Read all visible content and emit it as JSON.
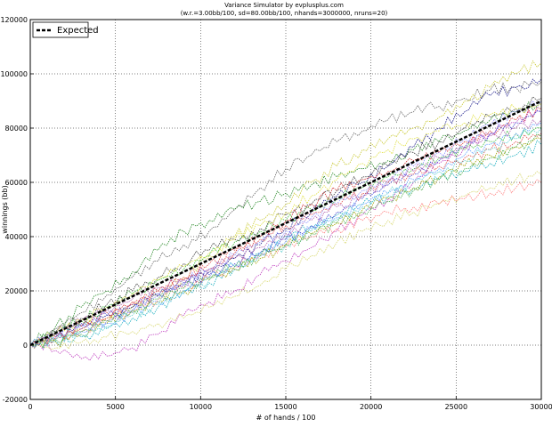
{
  "chart_data": {
    "type": "line",
    "title": "Variance Simulator by evplusplus.com",
    "subtitle": "(w.r.=3.00bb/100, sd=80.00bb/100, nhands=3000000, nruns=20)",
    "xlabel": "# of hands / 100",
    "ylabel": "winnings (bb)",
    "xlim": [
      0,
      30000
    ],
    "ylim": [
      -20000,
      120000
    ],
    "x_ticks": [
      0,
      5000,
      10000,
      15000,
      20000,
      25000,
      30000
    ],
    "y_ticks": [
      -20000,
      0,
      20000,
      40000,
      60000,
      80000,
      100000,
      120000
    ],
    "grid": true,
    "legend": {
      "position": "top-left",
      "entries": [
        "Expected"
      ]
    },
    "x": [
      0,
      1500,
      3000,
      4500,
      6000,
      7500,
      9000,
      10500,
      12000,
      13500,
      15000,
      16500,
      18000,
      19500,
      21000,
      22500,
      24000,
      25500,
      27000,
      28500,
      30000
    ],
    "series": [
      {
        "name": "Expected",
        "color": "#000000",
        "style": "dashed",
        "width": 2.5,
        "values": [
          0,
          4500,
          9000,
          13500,
          18000,
          22500,
          27000,
          31500,
          36000,
          40500,
          45000,
          49500,
          54000,
          58500,
          63000,
          67500,
          72000,
          76500,
          81000,
          85500,
          90000
        ]
      },
      {
        "color": "#6a6a6a",
        "values": [
          0,
          6000,
          12000,
          18500,
          25000,
          31000,
          37000,
          42000,
          50000,
          58000,
          65000,
          70000,
          75000,
          79000,
          83000,
          86000,
          88000,
          91000,
          94000,
          95000,
          97000
        ]
      },
      {
        "color": "#c8c830",
        "values": [
          0,
          2000,
          6000,
          10000,
          14000,
          18000,
          25000,
          33000,
          40000,
          46000,
          52000,
          60000,
          66000,
          72000,
          76000,
          80000,
          84000,
          90000,
          95000,
          100000,
          104000
        ]
      },
      {
        "color": "#1a1a8a",
        "values": [
          0,
          3000,
          7000,
          11000,
          14000,
          18000,
          23000,
          27000,
          32000,
          37000,
          43000,
          49000,
          55000,
          60000,
          66000,
          73000,
          80000,
          86000,
          92000,
          95000,
          98000
        ]
      },
      {
        "color": "#2a8a2a",
        "values": [
          0,
          7000,
          14000,
          20000,
          27000,
          35000,
          42000,
          46000,
          50000,
          53000,
          56000,
          59000,
          62000,
          65000,
          68000,
          72000,
          75000,
          79000,
          83000,
          86000,
          90000
        ]
      },
      {
        "color": "#d03030",
        "values": [
          0,
          3000,
          7000,
          12000,
          16000,
          20000,
          24000,
          28000,
          34000,
          40000,
          46000,
          52000,
          57000,
          61000,
          64000,
          68000,
          71000,
          75000,
          79000,
          83000,
          87000
        ]
      },
      {
        "color": "#c040c0",
        "values": [
          0,
          -2000,
          -5000,
          -4000,
          -1000,
          4000,
          11000,
          16000,
          20000,
          26000,
          31000,
          36000,
          42000,
          48000,
          54000,
          60000,
          67000,
          73000,
          78000,
          82000,
          86000
        ]
      },
      {
        "color": "#20b0c0",
        "values": [
          0,
          1500,
          3000,
          6000,
          10000,
          14000,
          19000,
          23000,
          28000,
          34000,
          40000,
          44000,
          48000,
          52000,
          55000,
          58000,
          61000,
          64000,
          67000,
          70000,
          74000
        ]
      },
      {
        "color": "#d8d870",
        "values": [
          0,
          -1000,
          1000,
          3000,
          5000,
          8000,
          10000,
          14000,
          18000,
          22000,
          28000,
          33000,
          38000,
          42000,
          46000,
          49000,
          52000,
          55000,
          58000,
          61000,
          63000
        ]
      },
      {
        "color": "#ff8080",
        "values": [
          0,
          2500,
          5000,
          9000,
          13000,
          17000,
          21000,
          25000,
          29000,
          33000,
          36000,
          40000,
          43000,
          46000,
          49000,
          51000,
          52000,
          54000,
          56000,
          58000,
          60000
        ]
      },
      {
        "color": "#4040d0",
        "values": [
          0,
          4000,
          8000,
          11000,
          15000,
          19000,
          22000,
          26000,
          30000,
          34000,
          39000,
          44000,
          49000,
          54000,
          59000,
          63000,
          68000,
          73000,
          78000,
          82000,
          86000
        ]
      },
      {
        "color": "#40c040",
        "values": [
          0,
          5000,
          9000,
          14000,
          19000,
          24000,
          28000,
          33000,
          38000,
          42000,
          46000,
          50000,
          54000,
          58000,
          62000,
          65000,
          69000,
          72000,
          75000,
          78000,
          80000
        ]
      },
      {
        "color": "#a0a000",
        "values": [
          0,
          1000,
          4000,
          8000,
          12000,
          16000,
          20000,
          24000,
          28000,
          32000,
          37000,
          41000,
          45000,
          50000,
          54000,
          58000,
          62000,
          66000,
          70000,
          73000,
          76000
        ]
      },
      {
        "color": "#404040",
        "values": [
          0,
          5000,
          10000,
          15000,
          20000,
          25000,
          30000,
          35000,
          39000,
          43000,
          48000,
          52000,
          57000,
          62000,
          66000,
          71000,
          75000,
          80000,
          84000,
          87000,
          91000
        ]
      },
      {
        "color": "#60a0ff",
        "values": [
          0,
          2000,
          5000,
          8000,
          12000,
          16000,
          20000,
          25000,
          29000,
          34000,
          38000,
          43000,
          47000,
          52000,
          56000,
          61000,
          65000,
          70000,
          74000,
          78000,
          82000
        ]
      },
      {
        "color": "#e05050",
        "values": [
          0,
          3000,
          6000,
          10000,
          15000,
          20000,
          25000,
          30000,
          35000,
          39000,
          44000,
          48000,
          52000,
          56000,
          60000,
          63000,
          66000,
          69000,
          72000,
          75000,
          78000
        ]
      },
      {
        "color": "#60d0d0",
        "values": [
          0,
          2000,
          4000,
          7000,
          11000,
          15000,
          20000,
          24000,
          29000,
          33000,
          37000,
          42000,
          46000,
          51000,
          56000,
          60000,
          64000,
          68000,
          72000,
          76000,
          80000
        ]
      },
      {
        "color": "#b060b0",
        "values": [
          0,
          4000,
          9000,
          13000,
          17000,
          21000,
          24000,
          28000,
          32000,
          36000,
          41000,
          46000,
          51000,
          55000,
          60000,
          64000,
          69000,
          73000,
          77000,
          80000,
          83000
        ]
      },
      {
        "color": "#9090ff",
        "values": [
          0,
          3000,
          6000,
          9000,
          13000,
          18000,
          23000,
          28000,
          33000,
          38000,
          42000,
          47000,
          52000,
          57000,
          61000,
          66000,
          71000,
          76000,
          81000,
          86000,
          90000
        ]
      },
      {
        "color": "#e0e040",
        "values": [
          0,
          4000,
          9000,
          14000,
          19000,
          24000,
          29000,
          34000,
          39000,
          44000,
          49000,
          55000,
          61000,
          67000,
          72000,
          76000,
          79000,
          82000,
          85000,
          87000,
          89000
        ]
      },
      {
        "color": "#50b050",
        "values": [
          0,
          2000,
          5000,
          9000,
          13000,
          17000,
          21000,
          25000,
          29000,
          33000,
          37000,
          41000,
          45000,
          49000,
          53000,
          57000,
          61000,
          65000,
          69000,
          73000,
          77000
        ]
      }
    ]
  }
}
